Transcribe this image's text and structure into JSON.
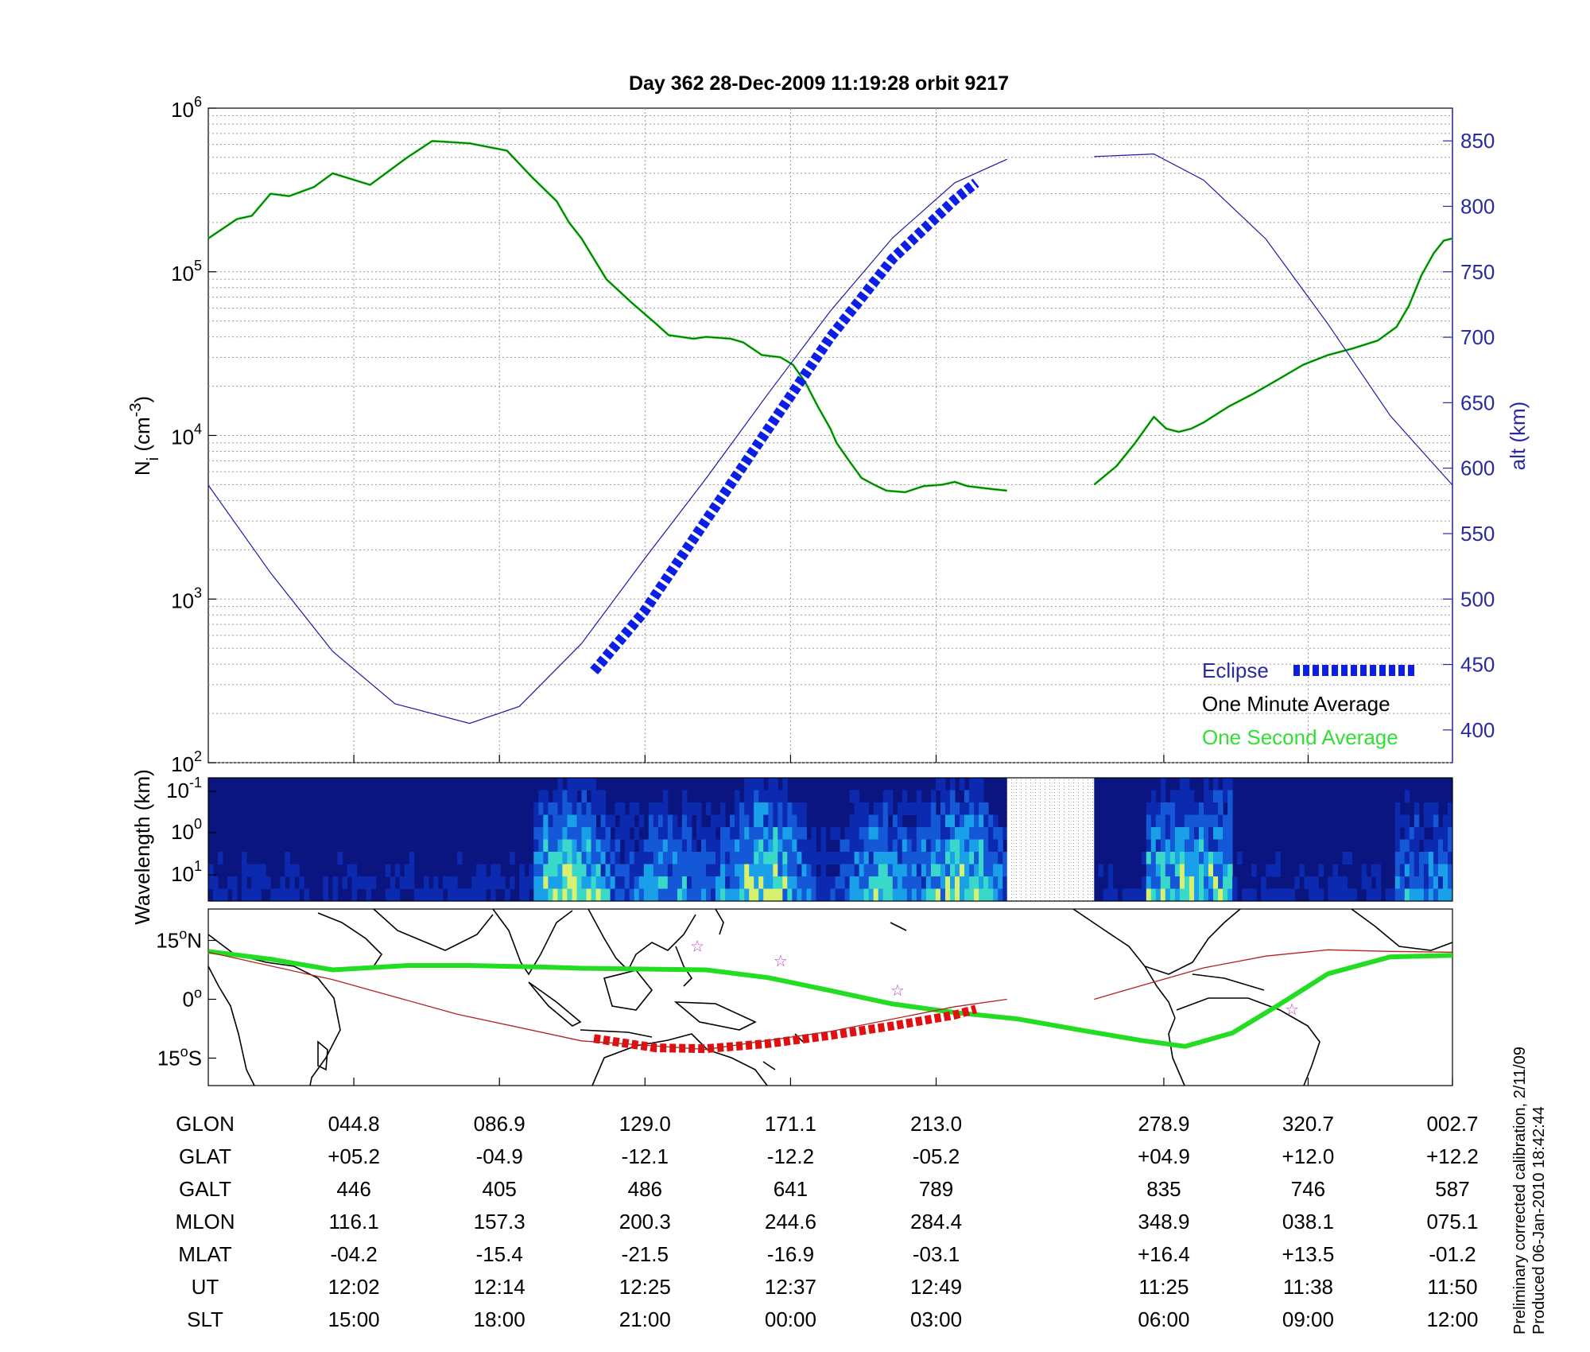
{
  "title": "Day 362  28-Dec-2009 11:19:28   orbit 9217",
  "colors": {
    "one_minute": "#006400",
    "one_second": "#33dd33",
    "altitude": "#1a1aa8",
    "eclipse": "#0a1ee6",
    "track": "#22dd22",
    "track_eclipse": "#e01010",
    "mag_equator": "#b22222",
    "axis_blue": "#2a2aa0"
  },
  "chart_data": [
    {
      "type": "line",
      "panel": "density",
      "ylabel_left_html": "N<tspan baseline-shift='sub' font-size='20'>i</tspan> (cm<tspan baseline-shift='super' font-size='20'>-3</tspan>)",
      "ylabel_left": "Ni (cm-3)",
      "ylabel_right": "alt (km)",
      "yscale_left": "log",
      "ylim_left": [
        100,
        1000000
      ],
      "yticks_left": [
        {
          "base": "10",
          "exp": "2",
          "v": 100
        },
        {
          "base": "10",
          "exp": "3",
          "v": 1000
        },
        {
          "base": "10",
          "exp": "4",
          "v": 10000
        },
        {
          "base": "10",
          "exp": "5",
          "v": 100000
        },
        {
          "base": "10",
          "exp": "6",
          "v": 1000000
        }
      ],
      "ylim_right": [
        375,
        875
      ],
      "yticks_right": [
        "400",
        "450",
        "500",
        "550",
        "600",
        "650",
        "700",
        "750",
        "800",
        "850"
      ],
      "xlim": [
        0,
        1
      ],
      "grid": true,
      "legend_position": "bottom-right",
      "legend": [
        {
          "label": "Eclipse",
          "color": "#0a1ee6"
        },
        {
          "label": "One Minute Average",
          "color": "#000000"
        },
        {
          "label": "One Second Average",
          "color": "#33dd33"
        }
      ],
      "gap": [
        0.642,
        0.712
      ],
      "series": [
        {
          "name": "One Minute Average",
          "axis": "left",
          "x": [
            0,
            0.023,
            0.035,
            0.05,
            0.065,
            0.085,
            0.1,
            0.13,
            0.16,
            0.18,
            0.21,
            0.24,
            0.26,
            0.28,
            0.29,
            0.3,
            0.31,
            0.32,
            0.34,
            0.36,
            0.37,
            0.38,
            0.39,
            0.4,
            0.42,
            0.43,
            0.445,
            0.46,
            0.47,
            0.48,
            0.49,
            0.5,
            0.505,
            0.515,
            0.525,
            0.535,
            0.545,
            0.56,
            0.575,
            0.59,
            0.6,
            0.61,
            0.62,
            0.63,
            0.642
          ],
          "y": [
            160000,
            210000,
            220000,
            300000,
            290000,
            330000,
            400000,
            340000,
            500000,
            630000,
            610000,
            550000,
            380000,
            270000,
            200000,
            160000,
            120000,
            90000,
            65000,
            48000,
            41000,
            40000,
            39000,
            40000,
            39000,
            37000,
            31000,
            30000,
            27000,
            21000,
            15000,
            11000,
            9000,
            7000,
            5500,
            5000,
            4600,
            4500,
            4900,
            5000,
            5200,
            4900,
            4800,
            4700,
            4600
          ]
        },
        {
          "name": "One Minute Average",
          "axis": "left",
          "x": [
            0.712,
            0.73,
            0.745,
            0.76,
            0.77,
            0.78,
            0.79,
            0.8,
            0.82,
            0.84,
            0.86,
            0.88,
            0.9,
            0.92,
            0.94,
            0.955,
            0.965,
            0.975,
            0.985,
            0.993,
            1.0
          ],
          "y": [
            5000,
            6500,
            9000,
            13000,
            11000,
            10500,
            11000,
            12000,
            15000,
            18000,
            22000,
            27000,
            31000,
            34000,
            38000,
            46000,
            62000,
            95000,
            130000,
            155000,
            160000
          ]
        },
        {
          "name": "altitude",
          "axis": "right",
          "x": [
            0,
            0.05,
            0.1,
            0.15,
            0.21,
            0.25,
            0.3,
            0.35,
            0.4,
            0.45,
            0.5,
            0.55,
            0.6,
            0.642
          ],
          "y": [
            587,
            520,
            460,
            420,
            405,
            418,
            466,
            530,
            592,
            657,
            720,
            776,
            818,
            836
          ]
        },
        {
          "name": "altitude",
          "axis": "right",
          "x": [
            0.712,
            0.76,
            0.8,
            0.85,
            0.9,
            0.95,
            1.0
          ],
          "y": [
            838,
            840,
            820,
            775,
            710,
            640,
            587
          ]
        },
        {
          "name": "Eclipse",
          "axis": "right",
          "x": [
            0.31,
            0.35,
            0.4,
            0.45,
            0.5,
            0.55,
            0.6,
            0.617
          ],
          "y": [
            445,
            490,
            560,
            630,
            700,
            760,
            805,
            818
          ]
        }
      ]
    },
    {
      "type": "heatmap",
      "panel": "spectrogram",
      "ylabel": "Wavelength (km)",
      "yticks": [
        {
          "base": "10",
          "exp": "-1"
        },
        {
          "base": "10",
          "exp": "0"
        },
        {
          "base": "10",
          "exp": "1"
        }
      ],
      "gap": [
        0.642,
        0.712
      ]
    },
    {
      "type": "line",
      "panel": "map",
      "ylim": [
        -22,
        23
      ],
      "yticks": [
        {
          "v": 15,
          "main": "15",
          "deg": "o",
          "hemi": "N"
        },
        {
          "v": 0,
          "main": "0",
          "deg": "o",
          "hemi": ""
        },
        {
          "v": -15,
          "main": "15",
          "deg": "o",
          "hemi": "S"
        }
      ],
      "series": [
        {
          "name": "track",
          "x": [
            0,
            0.05,
            0.1,
            0.16,
            0.21,
            0.27,
            0.3,
            0.35,
            0.4,
            0.45,
            0.5,
            0.55,
            0.6,
            0.65,
            0.7,
            0.75,
            0.785,
            0.823,
            0.86,
            0.9,
            0.95,
            1.0
          ],
          "y": [
            12.2,
            10.2,
            7.5,
            8.6,
            8.6,
            8.2,
            7.9,
            7.7,
            7.5,
            5.5,
            2.2,
            -1.2,
            -3.4,
            -5.0,
            -7.8,
            -10.5,
            -12.0,
            -8.6,
            -1.5,
            6.5,
            10.8,
            11.2
          ]
        },
        {
          "name": "track_eclipse",
          "x": [
            0.31,
            0.36,
            0.4,
            0.45,
            0.5,
            0.55,
            0.6,
            0.617
          ],
          "y": [
            -10.0,
            -12.4,
            -12.6,
            -11.3,
            -9.2,
            -6.8,
            -4.0,
            -2.5
          ]
        },
        {
          "name": "mag_equator",
          "x": [
            0,
            0.1,
            0.2,
            0.3,
            0.4,
            0.5,
            0.6,
            0.642
          ],
          "y": [
            12.0,
            5.0,
            -3.8,
            -10.6,
            -12.8,
            -8.2,
            -1.9,
            0.0
          ]
        },
        {
          "name": "mag_equator",
          "x": [
            0.712,
            0.75,
            0.8,
            0.85,
            0.9,
            0.95,
            1.0
          ],
          "y": [
            0.0,
            3.5,
            8.0,
            11.0,
            12.6,
            12.2,
            12.0
          ]
        }
      ],
      "stars": [
        {
          "x": 0.393,
          "y": 13.6
        },
        {
          "x": 0.46,
          "y": 9.8
        },
        {
          "x": 0.554,
          "y": 2.3
        },
        {
          "x": 0.871,
          "y": -2.5
        }
      ]
    }
  ],
  "table": {
    "columns_x": [
      0.117,
      0.234,
      0.351,
      0.468,
      0.585,
      0.768,
      0.884,
      1.0
    ],
    "rows": [
      {
        "label": "GLON",
        "values": [
          "044.8",
          "086.9",
          "129.0",
          "171.1",
          "213.0",
          "278.9",
          "320.7",
          "002.7"
        ]
      },
      {
        "label": "GLAT",
        "values": [
          "+05.2",
          "-04.9",
          "-12.1",
          "-12.2",
          "-05.2",
          "+04.9",
          "+12.0",
          "+12.2"
        ]
      },
      {
        "label": "GALT",
        "values": [
          "446",
          "405",
          "486",
          "641",
          "789",
          "835",
          "746",
          "587"
        ]
      },
      {
        "label": "MLON",
        "values": [
          "116.1",
          "157.3",
          "200.3",
          "244.6",
          "284.4",
          "348.9",
          "038.1",
          "075.1"
        ]
      },
      {
        "label": "MLAT",
        "values": [
          "-04.2",
          "-15.4",
          "-21.5",
          "-16.9",
          "-03.1",
          "+16.4",
          "+13.5",
          "-01.2"
        ]
      },
      {
        "label": "UT",
        "values": [
          "12:02",
          "12:14",
          "12:25",
          "12:37",
          "12:49",
          "11:25",
          "11:38",
          "11:50"
        ]
      },
      {
        "label": "SLT",
        "values": [
          "15:00",
          "18:00",
          "21:00",
          "00:00",
          "03:00",
          "06:00",
          "09:00",
          "12:00"
        ]
      }
    ]
  },
  "footer": {
    "line1": "Preliminary corrected calibration, 2/11/09",
    "line2": "Produced 06-Jan-2010 18:42:44"
  }
}
